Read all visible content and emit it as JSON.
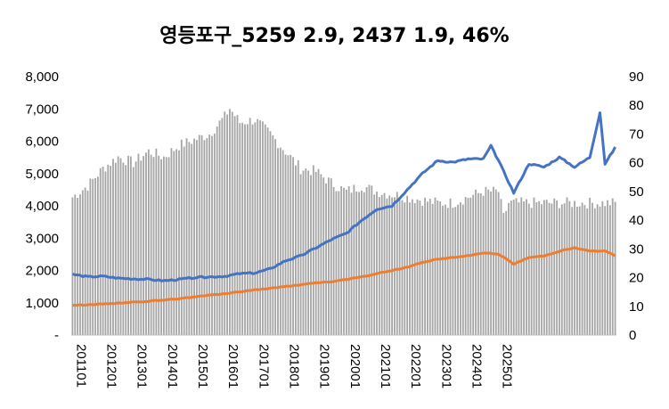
{
  "chart_data": {
    "type": "bar",
    "title": "영등포구_5259 2.9, 2437 1.9, 46%",
    "x_tick_labels": [
      "201101",
      "201201",
      "201301",
      "201401",
      "201501",
      "201601",
      "201701",
      "201801",
      "201901",
      "202001",
      "202101",
      "202201",
      "202301",
      "202401",
      "202501"
    ],
    "y_left": {
      "range": [
        0,
        8000
      ],
      "ticks": [
        "-",
        "1,000",
        "2,000",
        "3,000",
        "4,000",
        "5,000",
        "6,000",
        "7,000",
        "8,000"
      ]
    },
    "y_right": {
      "range": [
        0,
        90
      ],
      "ticks": [
        "0",
        "10",
        "20",
        "30",
        "40",
        "50",
        "60",
        "70",
        "80",
        "90"
      ]
    },
    "series": [
      {
        "type": "bar",
        "axis": "right",
        "color": "#a6a6a6",
        "anchors": [
          [
            0,
            48
          ],
          [
            6,
            52
          ],
          [
            12,
            58
          ],
          [
            18,
            62
          ],
          [
            24,
            60
          ],
          [
            30,
            64
          ],
          [
            36,
            62
          ],
          [
            42,
            66
          ],
          [
            48,
            68
          ],
          [
            54,
            70
          ],
          [
            60,
            76
          ],
          [
            62,
            79
          ],
          [
            66,
            74
          ],
          [
            72,
            75
          ],
          [
            78,
            70
          ],
          [
            84,
            64
          ],
          [
            90,
            58
          ],
          [
            96,
            57
          ],
          [
            102,
            53
          ],
          [
            108,
            50
          ],
          [
            114,
            52
          ],
          [
            120,
            50
          ],
          [
            126,
            49
          ],
          [
            132,
            48
          ],
          [
            138,
            47
          ],
          [
            144,
            46
          ],
          [
            150,
            46
          ],
          [
            156,
            48
          ],
          [
            162,
            50
          ],
          [
            168,
            50
          ],
          [
            170,
            41
          ],
          [
            172,
            46
          ]
        ]
      },
      {
        "type": "line",
        "axis": "left",
        "color": "#4472c4",
        "anchors": [
          [
            0,
            1880
          ],
          [
            6,
            1800
          ],
          [
            12,
            1820
          ],
          [
            18,
            1760
          ],
          [
            24,
            1740
          ],
          [
            30,
            1720
          ],
          [
            36,
            1680
          ],
          [
            42,
            1720
          ],
          [
            48,
            1780
          ],
          [
            54,
            1800
          ],
          [
            60,
            1820
          ],
          [
            66,
            1900
          ],
          [
            72,
            1920
          ],
          [
            78,
            2050
          ],
          [
            84,
            2300
          ],
          [
            90,
            2450
          ],
          [
            96,
            2700
          ],
          [
            102,
            2950
          ],
          [
            108,
            3150
          ],
          [
            114,
            3550
          ],
          [
            120,
            3900
          ],
          [
            126,
            4000
          ],
          [
            132,
            4500
          ],
          [
            138,
            5000
          ],
          [
            144,
            5400
          ],
          [
            150,
            5350
          ],
          [
            156,
            5450
          ],
          [
            162,
            5450
          ],
          [
            165,
            5850
          ],
          [
            168,
            5400
          ],
          [
            174,
            4400
          ],
          [
            180,
            5300
          ],
          [
            186,
            5200
          ],
          [
            192,
            5500
          ],
          [
            198,
            5200
          ],
          [
            204,
            5500
          ],
          [
            208,
            6900
          ],
          [
            210,
            5300
          ],
          [
            214,
            5800
          ]
        ]
      },
      {
        "type": "line",
        "axis": "left",
        "color": "#ed7d31",
        "anchors": [
          [
            0,
            920
          ],
          [
            12,
            960
          ],
          [
            24,
            1020
          ],
          [
            36,
            1080
          ],
          [
            48,
            1180
          ],
          [
            60,
            1280
          ],
          [
            72,
            1400
          ],
          [
            84,
            1500
          ],
          [
            90,
            1550
          ],
          [
            96,
            1620
          ],
          [
            102,
            1650
          ],
          [
            108,
            1720
          ],
          [
            114,
            1800
          ],
          [
            120,
            1900
          ],
          [
            126,
            2000
          ],
          [
            132,
            2100
          ],
          [
            138,
            2250
          ],
          [
            144,
            2350
          ],
          [
            150,
            2400
          ],
          [
            156,
            2450
          ],
          [
            162,
            2550
          ],
          [
            168,
            2500
          ],
          [
            174,
            2200
          ],
          [
            180,
            2400
          ],
          [
            186,
            2450
          ],
          [
            192,
            2600
          ],
          [
            198,
            2700
          ],
          [
            204,
            2600
          ],
          [
            210,
            2600
          ],
          [
            214,
            2450
          ]
        ]
      }
    ],
    "grid": false,
    "legend": "none"
  }
}
